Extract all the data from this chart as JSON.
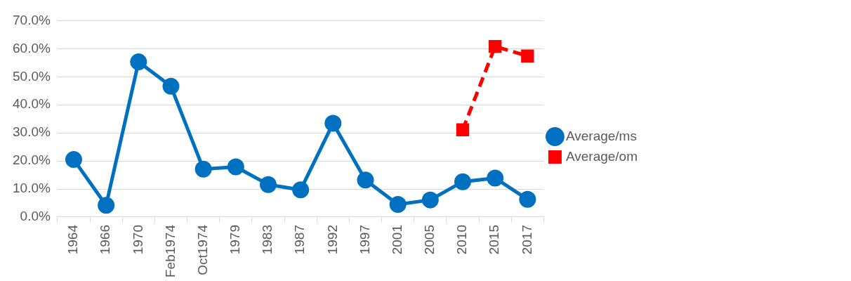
{
  "chart_data": {
    "type": "line",
    "categories": [
      "1964",
      "1966",
      "1970",
      "Feb1974",
      "Oct1974",
      "1979",
      "1983",
      "1987",
      "1992",
      "1997",
      "2001",
      "2005",
      "2010",
      "2015",
      "2017"
    ],
    "series": [
      {
        "name": "Average/ms",
        "color": "#0070c0",
        "marker": "circle",
        "line_style": "solid",
        "values": [
          20.5,
          4.2,
          55.3,
          46.6,
          17.1,
          17.9,
          11.6,
          9.7,
          33.4,
          13.2,
          4.5,
          6.1,
          12.6,
          13.9,
          6.3
        ]
      },
      {
        "name": "Average/om",
        "color": "#ff0000",
        "marker": "square",
        "line_style": "dashed",
        "values": [
          null,
          null,
          null,
          null,
          null,
          null,
          null,
          null,
          null,
          null,
          null,
          null,
          31.1,
          60.8,
          57.4
        ]
      }
    ],
    "ylim": [
      0,
      70
    ],
    "yticks": [
      {
        "value": 0,
        "label": "0.0%"
      },
      {
        "value": 10,
        "label": "10.0%"
      },
      {
        "value": 20,
        "label": "20.0%"
      },
      {
        "value": 30,
        "label": "30.0%"
      },
      {
        "value": 40,
        "label": "40.0%"
      },
      {
        "value": 50,
        "label": "50.0%"
      },
      {
        "value": 60,
        "label": "60.0%"
      },
      {
        "value": 70,
        "label": "70.0%"
      }
    ],
    "grid": "y",
    "legend": "right"
  }
}
